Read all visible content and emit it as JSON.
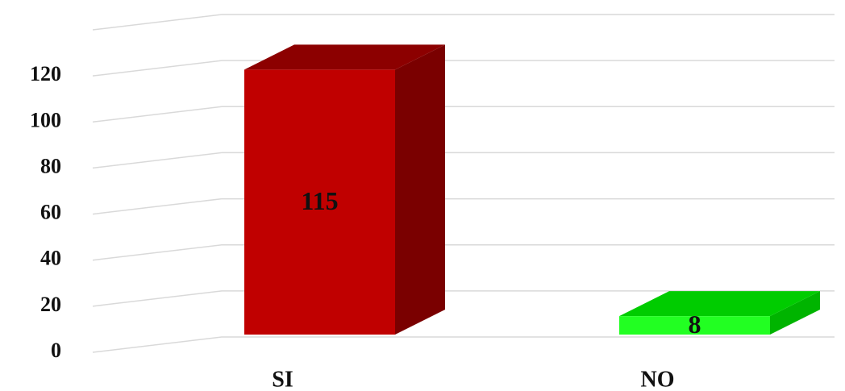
{
  "chart_data": {
    "type": "bar3d",
    "categories": [
      "SI",
      "NO"
    ],
    "values": [
      115,
      8
    ],
    "colors": [
      "#c00000",
      "#22ff22"
    ],
    "side_colors": [
      "#7a0000",
      "#00b400"
    ],
    "top_colors": [
      "#8c0000",
      "#00cc00"
    ],
    "ylim": [
      0,
      140
    ],
    "yticks": [
      0,
      20,
      40,
      60,
      80,
      100,
      120
    ],
    "grid": true
  }
}
